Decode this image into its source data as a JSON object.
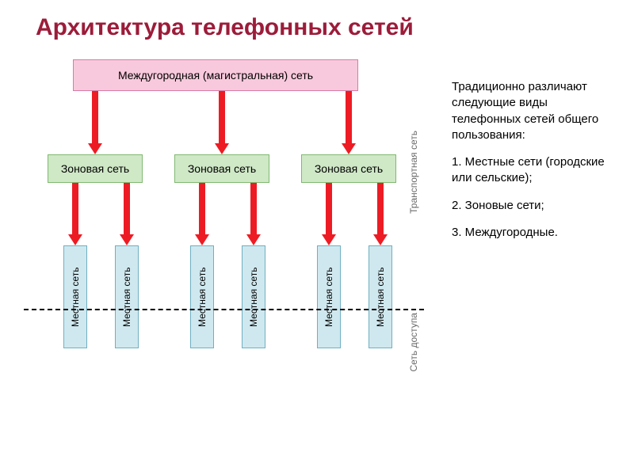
{
  "title": {
    "text": "Архитектура телефонных сетей",
    "color": "#9c1c3a",
    "fontsize": 30
  },
  "colors": {
    "arrow": "#ed1c24",
    "top_fill": "#f8c9dc",
    "top_border": "#d87aa6",
    "zone_fill": "#cfe8c6",
    "zone_border": "#7fb96f",
    "local_fill": "#cfe8ef",
    "local_border": "#6fb0c2",
    "vlabel": "#6a6a6a"
  },
  "top_box": "Междугородная (магистральная) сеть",
  "zones": [
    "Зоновая сеть",
    "Зоновая сеть",
    "Зоновая сеть"
  ],
  "zone_x": [
    30,
    190,
    350
  ],
  "locals": [
    "Местная сеть",
    "Местная сеть",
    "Местная сеть",
    "Местная сеть",
    "Местная сеть",
    "Местная сеть"
  ],
  "local_x": [
    50,
    115,
    210,
    275,
    370,
    435
  ],
  "top_arrows_x": [
    83,
    243,
    403
  ],
  "mid_arrows_x": [
    58,
    123,
    218,
    283,
    378,
    443
  ],
  "labels": {
    "transport": "Транспортная сеть",
    "access": "Сеть доступа"
  },
  "side": {
    "p1": "Традиционно различают следующие виды телефонных сетей общего пользования:",
    "p2": "1. Местные сети (городские или сельские);",
    "p3": "2. Зоновые сети;",
    "p4": "3. Междугородные."
  }
}
